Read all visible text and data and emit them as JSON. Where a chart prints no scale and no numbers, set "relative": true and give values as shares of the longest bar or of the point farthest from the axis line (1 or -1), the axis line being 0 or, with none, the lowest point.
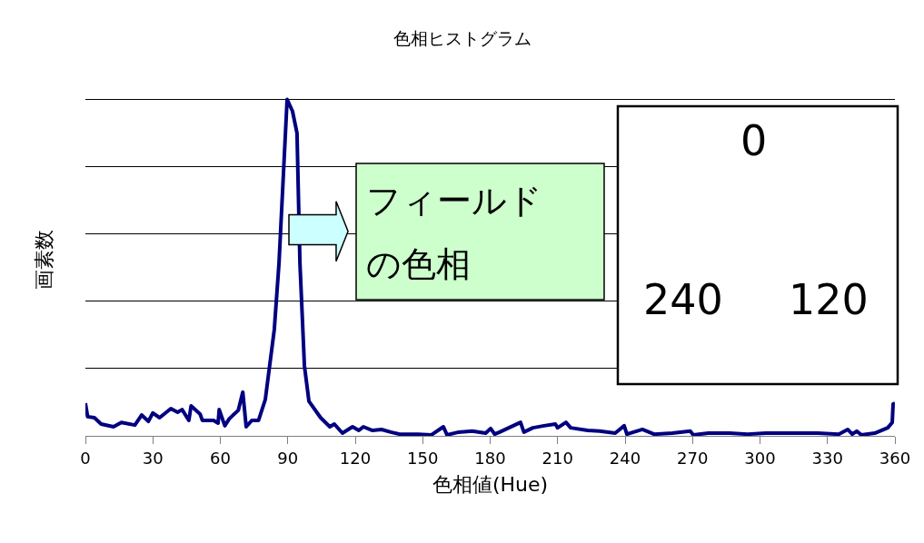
{
  "chart_data": {
    "type": "line",
    "title": "色相ヒストグラム",
    "xlabel": "色相値(Hue)",
    "ylabel": "画素数",
    "relative": true,
    "grid": "y",
    "marker": "none",
    "line_style": "solid",
    "xlim": [
      0,
      360
    ],
    "xticks": [
      0,
      30,
      60,
      90,
      120,
      150,
      180,
      210,
      240,
      270,
      300,
      330,
      360
    ],
    "x": [
      0,
      1,
      4,
      7,
      12.5,
      16,
      22,
      25,
      28,
      30,
      33,
      38,
      41,
      43,
      46,
      47,
      51,
      52,
      57,
      59,
      59.5,
      62,
      64,
      68,
      70,
      71.5,
      74,
      77,
      80,
      84,
      86.1,
      88.1,
      89.7,
      92.1,
      94.1,
      95.4,
      97.4,
      99.4,
      104.6,
      108.7,
      110.7,
      114.3,
      118.8,
      121.6,
      123.6,
      127.7,
      131.7,
      135.8,
      139.8,
      147.9,
      153.9,
      159.2,
      160.8,
      166,
      172,
      178,
      180.2,
      182,
      184.2,
      193.5,
      195,
      199,
      204,
      209,
      210,
      213.7,
      215.8,
      223.4,
      228.7,
      235.6,
      239.6,
      240.8,
      247.7,
      252.9,
      261,
      269,
      270.3,
      277,
      286.5,
      294.5,
      302.6,
      314.7,
      325.7,
      335,
      339,
      341,
      343,
      345,
      351,
      356.8,
      358.8,
      359.2,
      360
    ],
    "series": [
      {
        "color": "#000080",
        "values": [
          0.097,
          0.057,
          0.054,
          0.035,
          0.027,
          0.04,
          0.032,
          0.062,
          0.043,
          0.068,
          0.054,
          0.081,
          0.07,
          0.078,
          0.046,
          0.089,
          0.065,
          0.046,
          0.046,
          0.038,
          0.078,
          0.03,
          0.051,
          0.076,
          0.13,
          0.027,
          0.046,
          0.046,
          0.108,
          0.316,
          0.514,
          0.784,
          1,
          0.965,
          0.9,
          0.514,
          0.208,
          0.103,
          0.054,
          0.027,
          0.035,
          0.008,
          0.027,
          0.016,
          0.027,
          0.016,
          0.019,
          0.011,
          0.005,
          0.005,
          0.003,
          0.027,
          0.003,
          0.011,
          0.014,
          0.008,
          0.022,
          0.005,
          0.011,
          0.04,
          0.011,
          0.024,
          0.03,
          0.035,
          0.024,
          0.04,
          0.024,
          0.016,
          0.014,
          0.008,
          0.03,
          0.005,
          0.019,
          0.005,
          0.008,
          0.014,
          0.003,
          0.008,
          0.008,
          0.005,
          0.008,
          0.008,
          0.008,
          0.005,
          0.019,
          0.005,
          0.014,
          0.003,
          0.008,
          0.024,
          0.04,
          0.095,
          0.097
        ]
      }
    ],
    "annotations": [
      "フィールド",
      "の色相",
      "0",
      "120",
      "240"
    ]
  }
}
